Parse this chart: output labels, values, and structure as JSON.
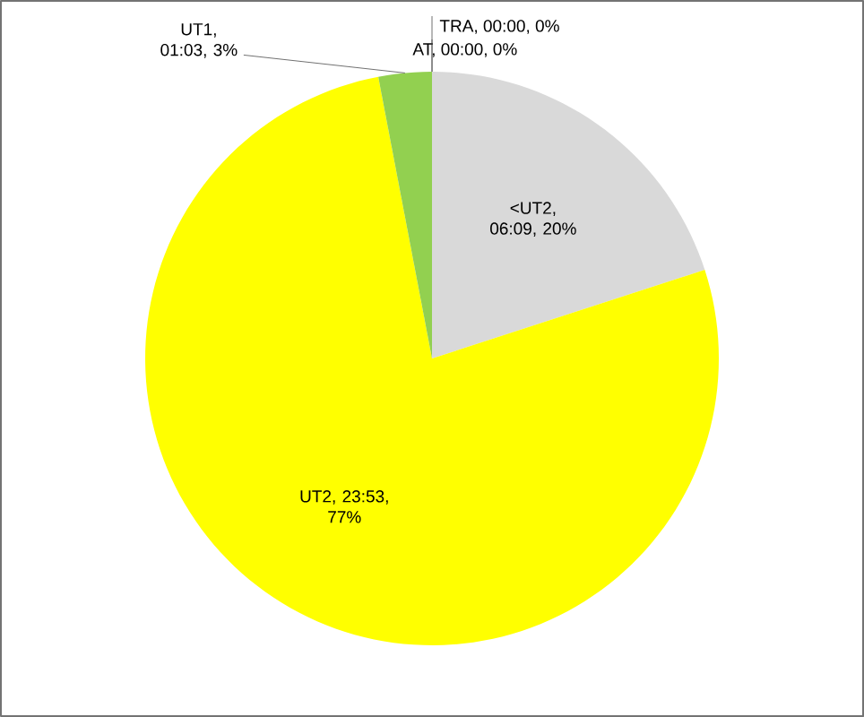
{
  "chart_data": {
    "type": "pie",
    "categories": [
      "<UT2, 06:09, 20%",
      "UT2, 23:53, 77%",
      "UT1, 01:03, 3%",
      "AT, 00:00, 0%",
      "TRA, 00:00, 0%"
    ],
    "values": [
      20,
      77,
      3,
      0,
      0
    ],
    "colors": [
      "#d9d9d9",
      "#ffff00",
      "#92d050",
      null,
      null
    ]
  }
}
